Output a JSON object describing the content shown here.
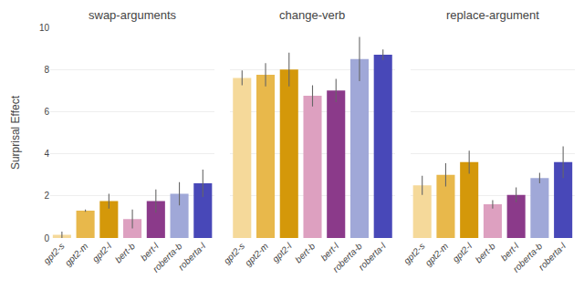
{
  "chart_data": [
    {
      "type": "bar",
      "title": "swap-arguments",
      "ylabel": "Surprisal Effect",
      "categories": [
        "gpt2-s",
        "gpt2-m",
        "gpt2-l",
        "bert-b",
        "bert-l",
        "roberta-b",
        "roberta-l"
      ],
      "values": [
        0.15,
        1.3,
        1.75,
        0.9,
        1.75,
        2.1,
        2.6
      ],
      "errors": [
        0.15,
        0.05,
        0.35,
        0.45,
        0.55,
        0.55,
        0.65
      ],
      "colors": [
        "#F5D99A",
        "#E8B84B",
        "#D4980A",
        "#DDA0C0",
        "#8B3A8A",
        "#A0A8D8",
        "#4848B8"
      ],
      "ylim": [
        0,
        10
      ],
      "yticks": [
        0,
        2,
        4,
        6,
        8,
        10
      ],
      "grid": true
    },
    {
      "type": "bar",
      "title": "change-verb",
      "categories": [
        "gpt2-s",
        "gpt2-m",
        "gpt2-l",
        "bert-b",
        "bert-l",
        "roberta-b",
        "roberta-l"
      ],
      "values": [
        7.6,
        7.75,
        8.0,
        6.75,
        7.0,
        8.5,
        8.7
      ],
      "errors": [
        0.35,
        0.55,
        0.8,
        0.5,
        0.55,
        1.05,
        0.25
      ],
      "colors": [
        "#F5D99A",
        "#E8B84B",
        "#D4980A",
        "#DDA0C0",
        "#8B3A8A",
        "#A0A8D8",
        "#4848B8"
      ],
      "ylim": [
        0,
        10
      ],
      "yticks": [
        0,
        2,
        4,
        6,
        8,
        10
      ],
      "grid": true,
      "tick_labels": "x"
    },
    {
      "type": "bar",
      "title": "replace-argument",
      "categories": [
        "gpt2-s",
        "gpt2-m",
        "gpt2-l",
        "bert-b",
        "bert-l",
        "roberta-b",
        "roberta-l"
      ],
      "values": [
        2.5,
        3.0,
        3.6,
        1.6,
        2.05,
        2.85,
        3.6
      ],
      "errors": [
        0.45,
        0.55,
        0.55,
        0.2,
        0.35,
        0.25,
        0.75
      ],
      "colors": [
        "#F5D99A",
        "#E8B84B",
        "#D4980A",
        "#DDA0C0",
        "#8B3A8A",
        "#A0A8D8",
        "#4848B8"
      ],
      "ylim": [
        0,
        10
      ],
      "yticks": [
        0,
        2,
        4,
        6,
        8,
        10
      ],
      "grid": true,
      "tick_labels": "x"
    }
  ]
}
